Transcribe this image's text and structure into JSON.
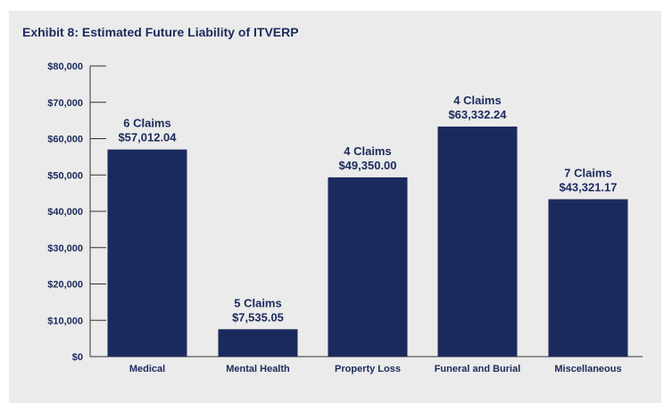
{
  "chart_data": {
    "type": "bar",
    "title": "Exhibit 8: Estimated Future Liability of ITVERP",
    "categories": [
      "Medical",
      "Mental Health",
      "Property Loss",
      "Funeral and Burial",
      "Miscellaneous"
    ],
    "values": [
      57012.04,
      7535.05,
      49350.0,
      63332.24,
      43321.17
    ],
    "bar_labels_top": [
      "6 Claims",
      "5 Claims",
      "4 Claims",
      "4 Claims",
      "7 Claims"
    ],
    "bar_labels_value": [
      "$57,012.04",
      "$7,535.05",
      "$49,350.00",
      "$63,332.24",
      "$43,321.17"
    ],
    "yticks": [
      "$0",
      "$10,000",
      "$20,000",
      "$30,000",
      "$40,000",
      "$50,000",
      "$60,000",
      "$70,000",
      "$80,000"
    ],
    "ylim": [
      0,
      80000
    ],
    "xlabel": "",
    "ylabel": "",
    "grid": false,
    "colors": {
      "bar": "#1b2a5c",
      "text": "#1b2a5c",
      "background": "#ebebeb"
    }
  }
}
